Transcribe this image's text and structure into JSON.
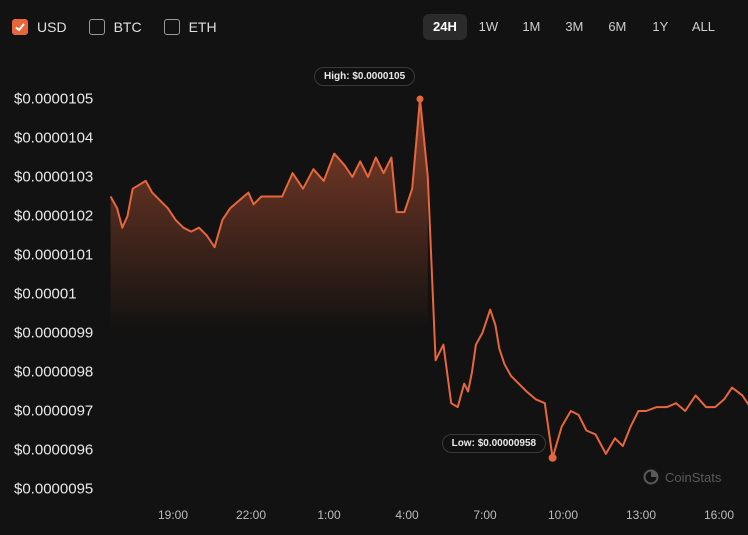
{
  "currencies": [
    {
      "label": "USD",
      "checked": true
    },
    {
      "label": "BTC",
      "checked": false
    },
    {
      "label": "ETH",
      "checked": false
    }
  ],
  "ranges": [
    "24H",
    "1W",
    "1M",
    "3M",
    "6M",
    "1Y",
    "ALL"
  ],
  "active_range": "24H",
  "brand": "CoinStats",
  "colors": {
    "accent": "#e8663b",
    "background": "#121212"
  },
  "tooltips": {
    "high": "High: $0.0000105",
    "low": "Low: $0.00000958"
  },
  "chart_data": {
    "type": "area",
    "title": "",
    "xlabel": "",
    "ylabel": "",
    "y_tick_labels": [
      "$0.0000105",
      "$0.0000104",
      "$0.0000103",
      "$0.0000102",
      "$0.0000101",
      "$0.00001",
      "$0.0000099",
      "$0.0000098",
      "$0.0000097",
      "$0.0000096",
      "$0.0000095"
    ],
    "x_tick_labels": [
      "19:00",
      "22:00",
      "1:00",
      "4:00",
      "7:00",
      "10:00",
      "13:00",
      "16:00"
    ],
    "ylim": [
      9.5e-06,
      1.05e-05
    ],
    "x_unit": "hours since 19:00",
    "high": 1.05e-05,
    "low": 9.58e-06,
    "series": [
      {
        "x": [
          -2.4,
          -2.15,
          -1.95,
          -1.75,
          -1.55,
          -1.3,
          -1.05,
          -0.8,
          -0.5,
          -0.2,
          0.1,
          0.4,
          0.7,
          1.0,
          1.3,
          1.6,
          1.9,
          2.2,
          2.55,
          2.9,
          3.1,
          3.4,
          3.8,
          4.2,
          4.6,
          5.0,
          5.4,
          5.8,
          6.2,
          6.6,
          6.9,
          7.2,
          7.5,
          7.8,
          8.1,
          8.4,
          8.6,
          8.9,
          9.2,
          9.5,
          9.8,
          10.1,
          10.4,
          10.7,
          10.95,
          11.2,
          11.35,
          11.5,
          11.65,
          11.9,
          12.2,
          12.4,
          12.55,
          12.75,
          13.0,
          13.3,
          13.6,
          13.95,
          14.3,
          14.6,
          14.95,
          15.3,
          15.6,
          15.9,
          16.25,
          16.65,
          17.0,
          17.3,
          17.6,
          17.9,
          18.2,
          18.6,
          19.0,
          19.35,
          19.7,
          20.1,
          20.5,
          20.85,
          21.2,
          21.5,
          21.9,
          22.2,
          22.5,
          22.9,
          23.3,
          23.6,
          24.0,
          24.3,
          24.6,
          24.9,
          25.2,
          25.6,
          25.9,
          26.3,
          26.7,
          27.0,
          27.4,
          27.8,
          28.2,
          28.6,
          28.9,
          29.3,
          29.6,
          29.85
        ],
        "y": [
          1.025e-05,
          1.022e-05,
          1.017e-05,
          1.02e-05,
          1.027e-05,
          1.028e-05,
          1.029e-05,
          1.026e-05,
          1.024e-05,
          1.022e-05,
          1.019e-05,
          1.017e-05,
          1.016e-05,
          1.017e-05,
          1.015e-05,
          1.012e-05,
          1.019e-05,
          1.022e-05,
          1.024e-05,
          1.026e-05,
          1.023e-05,
          1.025e-05,
          1.025e-05,
          1.025e-05,
          1.031e-05,
          1.027e-05,
          1.032e-05,
          1.029e-05,
          1.036e-05,
          1.033e-05,
          1.03e-05,
          1.034e-05,
          1.03e-05,
          1.035e-05,
          1.031e-05,
          1.035e-05,
          1.021e-05,
          1.021e-05,
          1.027e-05,
          1.05e-05,
          1.03e-05,
          9.83e-06,
          9.87e-06,
          9.72e-06,
          9.71e-06,
          9.77e-06,
          9.75e-06,
          9.8e-06,
          9.87e-06,
          9.9e-06,
          9.96e-06,
          9.92e-06,
          9.86e-06,
          9.82e-06,
          9.79e-06,
          9.77e-06,
          9.75e-06,
          9.73e-06,
          9.72e-06,
          9.58e-06,
          9.66e-06,
          9.7e-06,
          9.69e-06,
          9.65e-06,
          9.64e-06,
          9.59e-06,
          9.63e-06,
          9.61e-06,
          9.66e-06,
          9.7e-06,
          9.7e-06,
          9.71e-06,
          9.71e-06,
          9.72e-06,
          9.7e-06,
          9.74e-06,
          9.71e-06,
          9.71e-06,
          9.73e-06,
          9.76e-06,
          9.74e-06,
          9.71e-06,
          9.71e-06,
          9.72e-06,
          9.71e-06,
          9.73e-06,
          9.71e-06,
          9.69e-06,
          9.67e-06,
          9.65e-06,
          9.64e-06,
          9.66e-06,
          9.68e-06,
          9.7e-06,
          9.73e-06,
          9.74e-06,
          9.71e-06,
          9.71e-06,
          9.72e-06,
          9.73e-06,
          9.7e-06,
          9.68e-06,
          9.66e-06,
          9.64e-06
        ]
      }
    ]
  }
}
